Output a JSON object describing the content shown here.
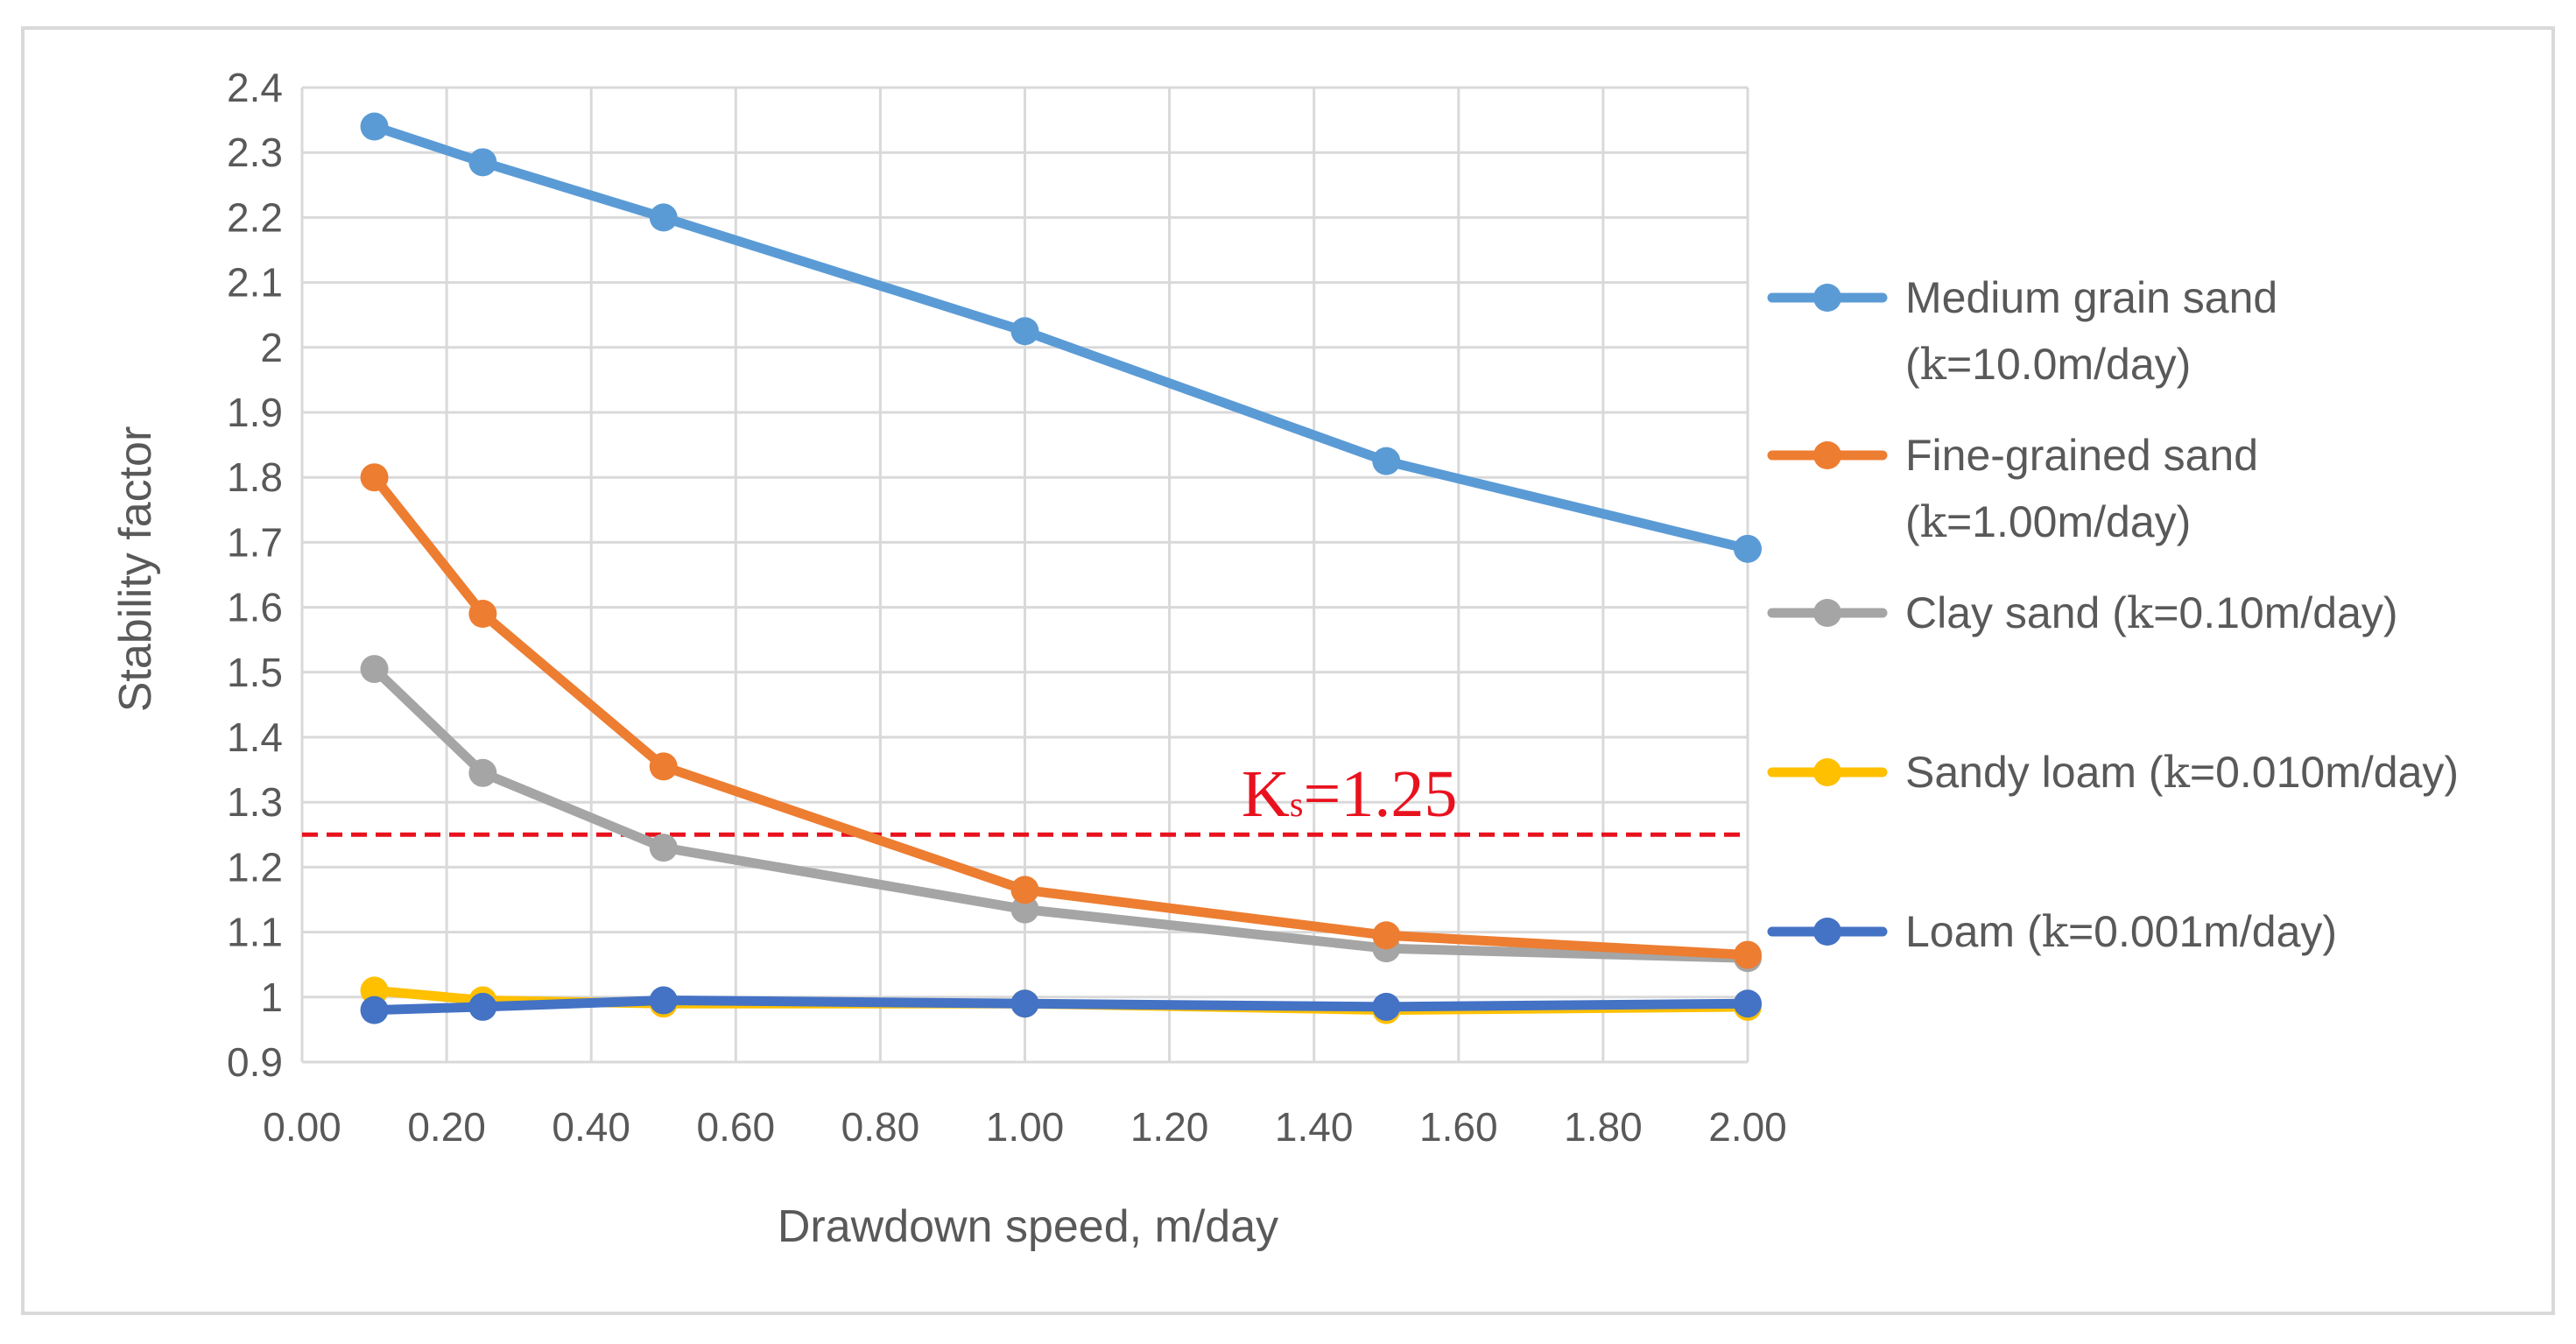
{
  "colors": {
    "medium_grain_sand": "#5b9bd5",
    "fine_grained_sand": "#ed7d31",
    "clay_sand": "#a5a5a5",
    "sandy_loam": "#ffc000",
    "loam": "#4472c4",
    "reference_line": "#e8121e",
    "grid": "#d9d9d9",
    "text": "#595959",
    "frame": "#d9d9d9"
  },
  "chart_data": {
    "type": "line",
    "title": "",
    "xlabel": "Drawdown speed, m/day",
    "ylabel": "Stability factor",
    "xlim": [
      0,
      2
    ],
    "ylim": [
      0.9,
      2.4
    ],
    "x_ticks": [
      "0.00",
      "0.20",
      "0.40",
      "0.60",
      "0.80",
      "1.00",
      "1.20",
      "1.40",
      "1.60",
      "1.80",
      "2.00"
    ],
    "y_ticks": [
      "0.9",
      "1",
      "1.1",
      "1.2",
      "1.3",
      "1.4",
      "1.5",
      "1.6",
      "1.7",
      "1.8",
      "1.9",
      "2",
      "2.1",
      "2.2",
      "2.3",
      "2.4"
    ],
    "grid": true,
    "legend_position": "right",
    "x": [
      0.1,
      0.25,
      0.5,
      1.0,
      1.5,
      2.0
    ],
    "series": [
      {
        "key": "medium_grain_sand",
        "legend_line1": "Medium grain sand",
        "legend_line2_prefix": "(",
        "legend_k": "k",
        "legend_line2_suffix": "=10.0m/day)",
        "values": [
          2.34,
          2.285,
          2.2,
          2.025,
          1.825,
          1.69
        ]
      },
      {
        "key": "fine_grained_sand",
        "legend_line1": "Fine-grained sand",
        "legend_line2_prefix": "(",
        "legend_k": "k",
        "legend_line2_suffix": "=1.00m/day)",
        "values": [
          1.8,
          1.59,
          1.355,
          1.165,
          1.095,
          1.065
        ]
      },
      {
        "key": "clay_sand",
        "legend_line1_prefix": "Clay sand (",
        "legend_k": "k",
        "legend_line1_suffix": "=0.10m/day)",
        "values": [
          1.505,
          1.345,
          1.23,
          1.135,
          1.075,
          1.06
        ]
      },
      {
        "key": "sandy_loam",
        "legend_line1_prefix": "Sandy loam (",
        "legend_k": "k",
        "legend_line1_suffix": "=0.010m/day)",
        "values": [
          1.01,
          0.995,
          0.99,
          0.99,
          0.98,
          0.985
        ]
      },
      {
        "key": "loam",
        "legend_line1_prefix": "Loam (",
        "legend_k": "k",
        "legend_line1_suffix": "=0.001m/day)",
        "values": [
          0.98,
          0.985,
          0.995,
          0.99,
          0.985,
          0.99
        ]
      }
    ],
    "reference_line": {
      "y": 1.25,
      "label_main": "K",
      "label_sub": "s",
      "label_value": "=1.25"
    }
  }
}
